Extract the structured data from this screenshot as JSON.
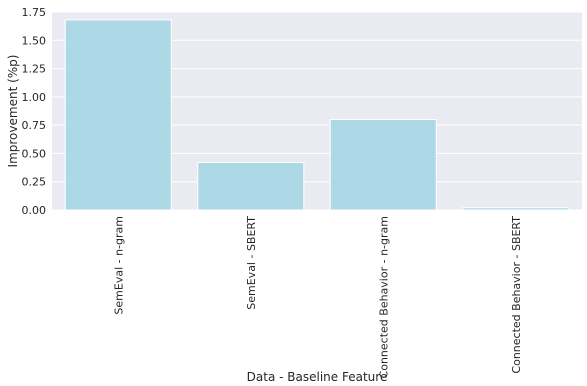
{
  "chart_data": {
    "type": "bar",
    "title": "",
    "xlabel": "Data - Baseline Feature",
    "ylabel": "Improvement (%p)",
    "categories": [
      "SemEval - n-gram",
      "SemEval - SBERT",
      "Connected Behavior - n-gram",
      "Connected Behavior - SBERT"
    ],
    "values": [
      1.68,
      0.42,
      0.8,
      0.02
    ],
    "ylim": [
      0,
      1.75
    ],
    "yticks": [
      "0.00",
      "0.25",
      "0.50",
      "0.75",
      "1.00",
      "1.25",
      "1.50",
      "1.75"
    ],
    "grid": true,
    "legend": "none",
    "colors": {
      "bar": "#add8e6",
      "plot_background": "#eaeaf2",
      "grid": "#ffffff",
      "text": "#262626"
    }
  }
}
